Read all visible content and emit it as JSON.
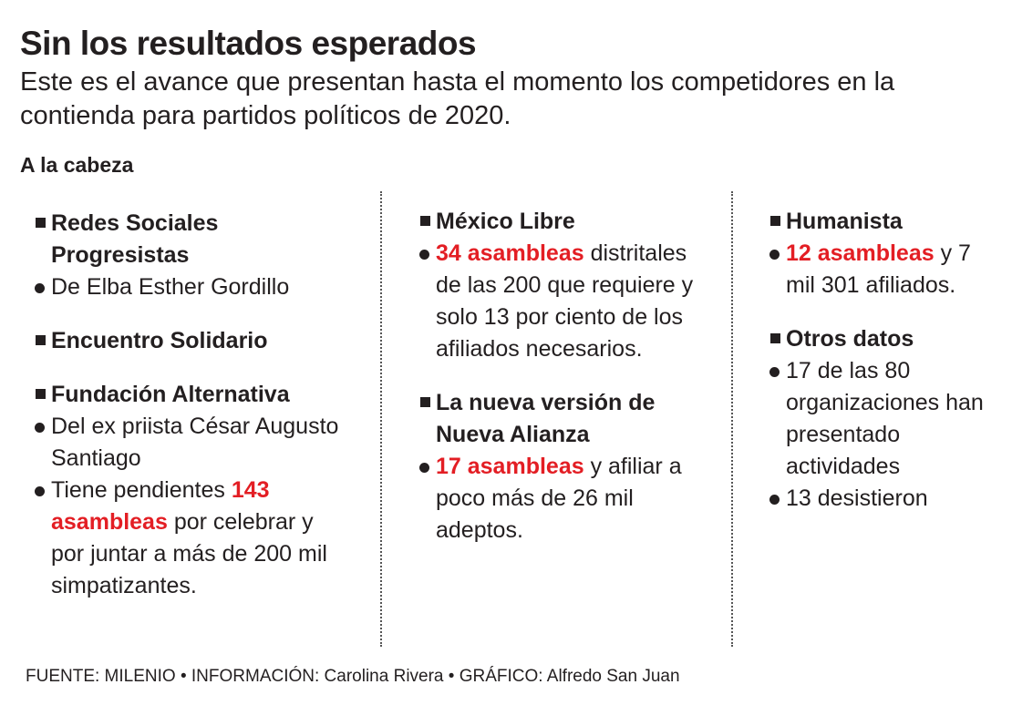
{
  "title": "Sin los resultados esperados",
  "subtitle": "Este es el avance que presentan hasta el momento los competidores en la contienda para partidos políticos de 2020.",
  "section": "A la cabeza",
  "colors": {
    "accent": "#e31e24",
    "text": "#231f20"
  },
  "columns": [
    {
      "blocks": [
        {
          "head": "Redes Sociales Progresistas",
          "items": [
            {
              "pre": "De Elba Esther Gordillo",
              "hl": "",
              "post": ""
            }
          ]
        },
        {
          "head": "Encuentro Solidario",
          "items": []
        },
        {
          "head": "Fundación Alternativa",
          "items": [
            {
              "pre": "Del ex priista César Augusto Santiago",
              "hl": "",
              "post": ""
            },
            {
              "pre": "Tiene pendientes ",
              "hl": "143 asambleas",
              "post": " por celebrar y por juntar a más de 200 mil simpatizantes."
            }
          ]
        }
      ]
    },
    {
      "blocks": [
        {
          "head": "México Libre",
          "items": [
            {
              "pre": "",
              "hl": "34 asambleas",
              "post": " distritales de las 200 que requiere y solo 13 por ciento de los afiliados necesarios."
            }
          ]
        },
        {
          "head": "La nueva versión de Nueva Alianza",
          "items": [
            {
              "pre": "",
              "hl": "17 asambleas",
              "post": " y afiliar a poco más de 26 mil adeptos."
            }
          ]
        }
      ]
    },
    {
      "blocks": [
        {
          "head": "Humanista",
          "items": [
            {
              "pre": "",
              "hl": "12 asambleas",
              "post": " y 7 mil 301 afiliados."
            }
          ]
        },
        {
          "head": "Otros datos",
          "items": [
            {
              "pre": "17 de las 80 organizaciones han presentado actividades",
              "hl": "",
              "post": ""
            },
            {
              "pre": "13 desistieron",
              "hl": "",
              "post": ""
            }
          ]
        }
      ]
    }
  ],
  "footer": "FUENTE: MILENIO • INFORMACIÓN: Carolina Rivera  • GRÁFICO: Alfredo San Juan"
}
